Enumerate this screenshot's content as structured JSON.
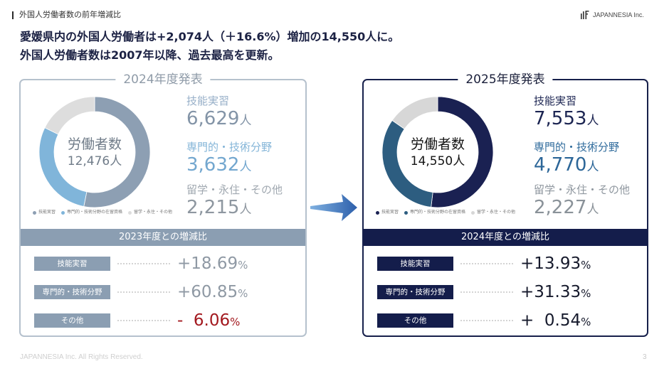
{
  "header": {
    "section_title": "外国人労働者数の前年増減比",
    "logo_text": "JAPANNESIA Inc."
  },
  "headline": {
    "line1": "愛媛県内の外国人労働者は+2,074人（＋16.6%）増加の14,550人に。",
    "line2": "外国人労働者数は2007年以降、過去最高を更新。"
  },
  "colors": {
    "headline": "#1c2244"
  },
  "panels": [
    {
      "theme": {
        "border": "#b5c1cd",
        "title": "#8f9ba8",
        "band": "#8b9eb2",
        "center_text": "#707c89"
      },
      "stats": [
        {
          "label": "技能実習",
          "value": "6,629",
          "unit": "人",
          "label_color": "#97afc8",
          "value_color": "#8394a7"
        },
        {
          "label": "専門的・技術分野",
          "value": "3,632",
          "unit": "人",
          "label_color": "#84b5d8",
          "value_color": "#73a7cf"
        },
        {
          "label": "留学・永住・その他",
          "value": "2,215",
          "unit": "人",
          "label_color": "#a0a8b0",
          "value_color": "#8e97a0"
        }
      ],
      "comparison_title": "2023年度との増減比",
      "comparison_rows": [
        {
          "label": "技能実習",
          "value": "+18.69",
          "unit": "%",
          "color": "#8f99a4"
        },
        {
          "label": "専門的・技術分野",
          "value": "+60.85",
          "unit": "%",
          "color": "#8f99a4"
        },
        {
          "label": "その他",
          "value": "-  6.06",
          "unit": "%",
          "color": "#a3191f"
        }
      ]
    },
    {
      "theme": {
        "border": "#17204b",
        "title": "#1a1f3a",
        "band": "#141d4b",
        "center_text": "#141414"
      },
      "stats": [
        {
          "label": "技能実習",
          "value": "7,553",
          "unit": "人",
          "label_color": "#1c2552",
          "value_color": "#1c2552"
        },
        {
          "label": "専門的・技術分野",
          "value": "4,770",
          "unit": "人",
          "label_color": "#2f6b9c",
          "value_color": "#2c6698"
        },
        {
          "label": "留学・永住・その他",
          "value": "2,227",
          "unit": "人",
          "label_color": "#8f979f",
          "value_color": "#8a9299"
        }
      ],
      "comparison_title": "2024年度との増減比",
      "comparison_rows": [
        {
          "label": "技能実習",
          "value": "+13.93",
          "unit": "%",
          "color": "#161a2c"
        },
        {
          "label": "専門的・技術分野",
          "value": "+31.33",
          "unit": "%",
          "color": "#161a2c"
        },
        {
          "label": "その他",
          "value": "+  0.54",
          "unit": "%",
          "color": "#161a2c"
        }
      ]
    }
  ],
  "chart_data": [
    {
      "type": "pie",
      "style": "donut",
      "title": "2024年度発表",
      "center_label": "労働者数",
      "center_value": "12,476人",
      "categories": [
        "技能実習",
        "専門的・技術分野の在留資格",
        "留学・永住・その他"
      ],
      "values": [
        6629,
        3632,
        2215
      ],
      "colors": [
        "#8d9fb3",
        "#80b5da",
        "#dddddd"
      ],
      "legend_position": "bottom"
    },
    {
      "type": "pie",
      "style": "donut",
      "title": "2025年度発表",
      "center_label": "労働者数",
      "center_value": "14,550人",
      "categories": [
        "技能実習",
        "専門的・技術分野の在留資格",
        "留学・永住・その他"
      ],
      "values": [
        7553,
        4770,
        2227
      ],
      "colors": [
        "#1a2152",
        "#2d5d80",
        "#d7d7d7"
      ],
      "legend_position": "bottom"
    }
  ],
  "footer": {
    "copyright": "JAPANNESIA Inc. All Rights Reserved.",
    "page_number": "3"
  }
}
